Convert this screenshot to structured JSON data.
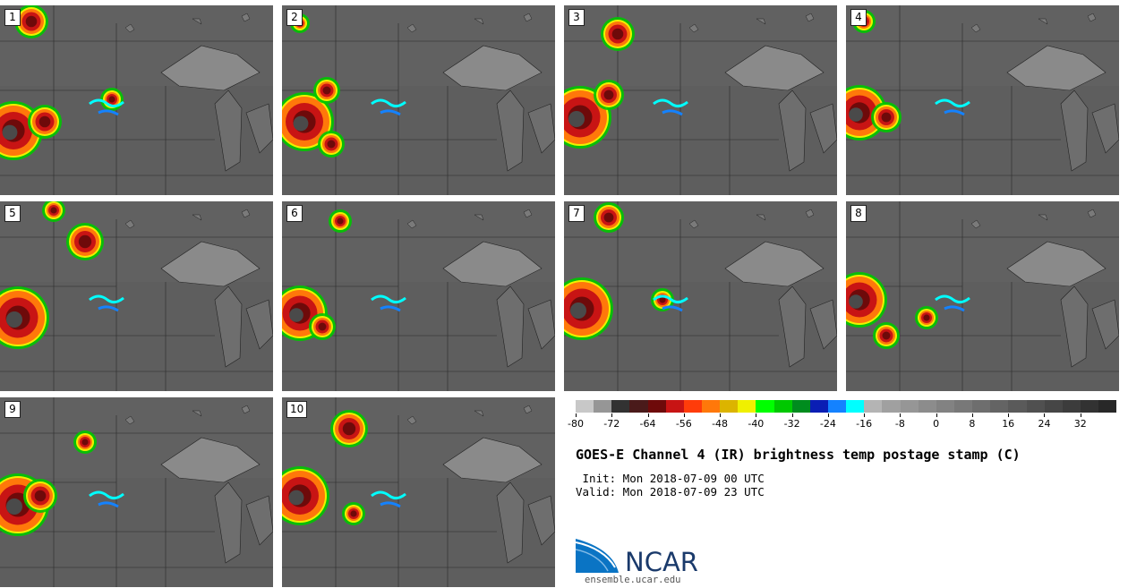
{
  "panels": [
    {
      "label": "1"
    },
    {
      "label": "2"
    },
    {
      "label": "3"
    },
    {
      "label": "4"
    },
    {
      "label": "5"
    },
    {
      "label": "6"
    },
    {
      "label": "7"
    },
    {
      "label": "8"
    },
    {
      "label": "9"
    },
    {
      "label": "10"
    }
  ],
  "colorbar": {
    "colors": [
      "#c8c8c8",
      "#969696",
      "#323232",
      "#4a1a1a",
      "#6e0a0a",
      "#c81414",
      "#ff3c0a",
      "#ff780a",
      "#dcb400",
      "#f0f000",
      "#00ff00",
      "#00c800",
      "#008c1e",
      "#0a1eb4",
      "#1482ff",
      "#00ffff",
      "#b4b4b4",
      "#a0a0a0",
      "#969696",
      "#8c8c8c",
      "#828282",
      "#787878",
      "#6e6e6e",
      "#646464",
      "#5a5a5a",
      "#505050",
      "#464646",
      "#3c3c3c",
      "#323232",
      "#282828"
    ],
    "ticks": [
      "-80",
      "-72",
      "-64",
      "-56",
      "-48",
      "-40",
      "-32",
      "-24",
      "-16",
      "-8",
      "0",
      "8",
      "16",
      "24",
      "32"
    ]
  },
  "title": "GOES-E Channel 4 (IR) brightness temp postage stamp (C)",
  "init": " Init: Mon 2018-07-09 00 UTC",
  "valid": "Valid: Mon 2018-07-09 23 UTC",
  "logo": {
    "text": "NCAR",
    "url": "ensemble.ucar.edu"
  }
}
